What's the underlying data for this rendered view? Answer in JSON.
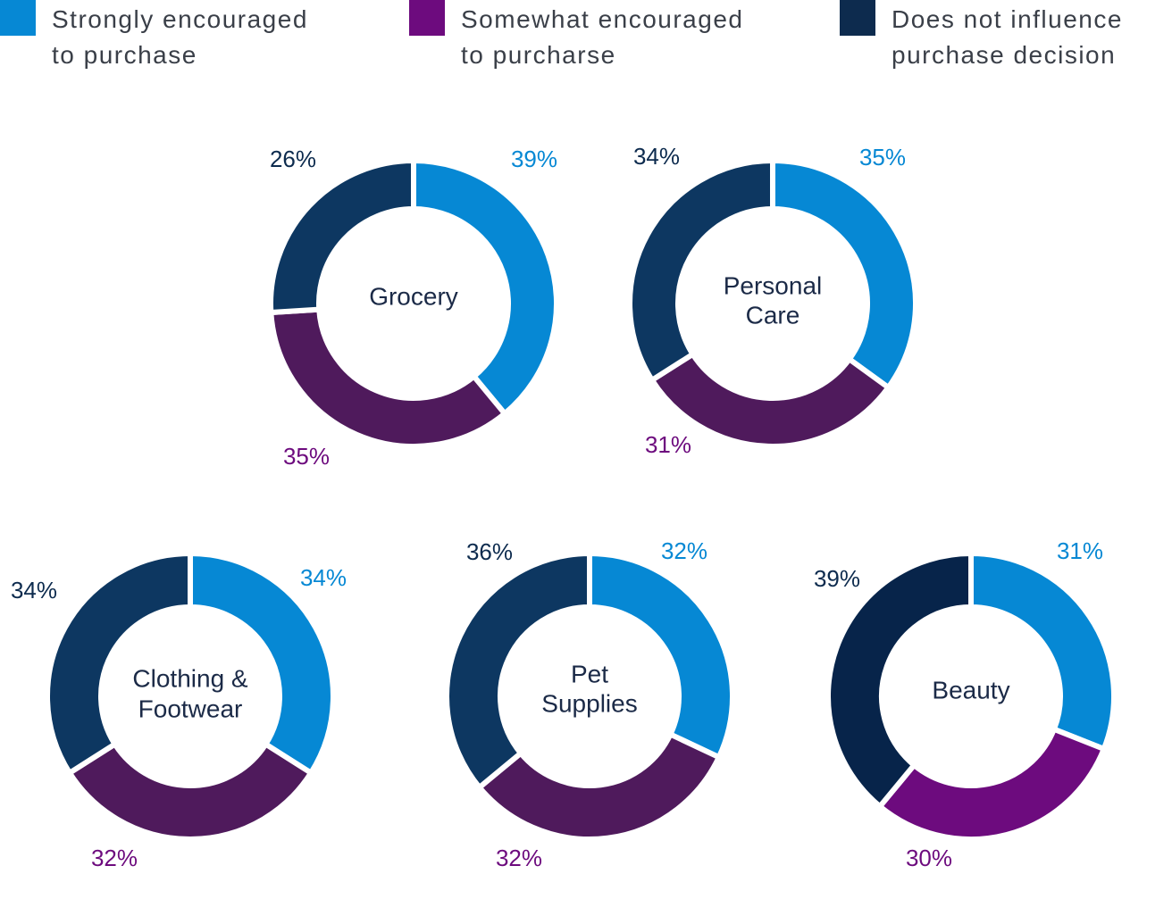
{
  "legend": [
    {
      "lines": [
        "Strongly encouraged",
        "to purchase"
      ],
      "color": "#0688d4"
    },
    {
      "lines": [
        "Somewhat encouraged",
        "to purcharse"
      ],
      "color": "#6d0b7e"
    },
    {
      "lines": [
        "Does not influence",
        "purchase decision"
      ],
      "color": "#0d2b4e"
    }
  ],
  "chart_data": [
    {
      "type": "pie",
      "name_lines": [
        "Grocery"
      ],
      "categories": [
        "Strongly encouraged to purchase",
        "Somewhat encouraged to purcharse",
        "Does not influence purchase decision"
      ],
      "values": [
        39,
        35,
        26
      ],
      "labels": [
        "39%",
        "35%",
        "26%"
      ],
      "colors": [
        "#0688d4",
        "#4f1a5c",
        "#0d3761"
      ],
      "label_colors": [
        "#0688d4",
        "#6d0b7e",
        "#0d2b4e"
      ]
    },
    {
      "type": "pie",
      "name_lines": [
        "Personal",
        "Care"
      ],
      "categories": [
        "Strongly encouraged to purchase",
        "Somewhat encouraged to purcharse",
        "Does not influence purchase decision"
      ],
      "values": [
        35,
        31,
        34
      ],
      "labels": [
        "35%",
        "31%",
        "34%"
      ],
      "colors": [
        "#0688d4",
        "#4f1a5c",
        "#0d3761"
      ],
      "label_colors": [
        "#0688d4",
        "#6d0b7e",
        "#0d2b4e"
      ]
    },
    {
      "type": "pie",
      "name_lines": [
        "Clothing &",
        "Footwear"
      ],
      "categories": [
        "Strongly encouraged to purchase",
        "Somewhat encouraged to purcharse",
        "Does not influence purchase decision"
      ],
      "values": [
        34,
        32,
        34
      ],
      "labels": [
        "34%",
        "32%",
        "34%"
      ],
      "colors": [
        "#0688d4",
        "#4f1a5c",
        "#0d3761"
      ],
      "label_colors": [
        "#0688d4",
        "#6d0b7e",
        "#0d2b4e"
      ]
    },
    {
      "type": "pie",
      "name_lines": [
        "Pet",
        "Supplies"
      ],
      "categories": [
        "Strongly encouraged to purchase",
        "Somewhat encouraged to purcharse",
        "Does not influence purchase decision"
      ],
      "values": [
        32,
        32,
        36
      ],
      "labels": [
        "32%",
        "32%",
        "36%"
      ],
      "colors": [
        "#0688d4",
        "#4f1a5c",
        "#0d3761"
      ],
      "label_colors": [
        "#0688d4",
        "#6d0b7e",
        "#0d2b4e"
      ]
    },
    {
      "type": "pie",
      "name_lines": [
        "Beauty"
      ],
      "categories": [
        "Strongly encouraged to purchase",
        "Somewhat encouraged to purcharse",
        "Does not influence purchase decision"
      ],
      "values": [
        31,
        30,
        39
      ],
      "labels": [
        "31%",
        "30%",
        "39%"
      ],
      "colors": [
        "#0688d4",
        "#6d0b7e",
        "#07244a"
      ],
      "label_colors": [
        "#0688d4",
        "#6d0b7e",
        "#0d2b4e"
      ]
    }
  ]
}
